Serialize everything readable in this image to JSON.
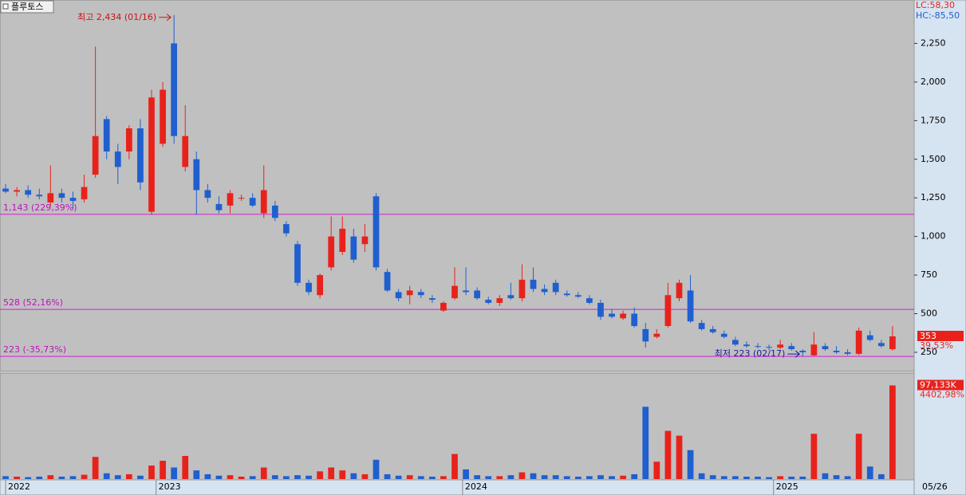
{
  "chart_data": {
    "type": "candlestick",
    "title": "플루토스",
    "open": [
      1310,
      1290,
      1300,
      1270,
      1220,
      1280,
      1250,
      1240,
      1400,
      1760,
      1550,
      1550,
      1700,
      1160,
      1600,
      2250,
      1450,
      1500,
      1300,
      1210,
      1200,
      1250,
      1250,
      1150,
      1200,
      1080,
      950,
      700,
      620,
      800,
      900,
      1000,
      950,
      1260,
      770,
      640,
      620,
      640,
      600,
      520,
      600,
      650,
      650,
      590,
      570,
      620,
      600,
      720,
      660,
      700,
      630,
      620,
      600,
      570,
      500,
      470,
      500,
      400,
      350,
      420,
      600,
      650,
      440,
      400,
      370,
      330,
      300,
      290,
      285,
      280,
      290,
      260,
      230,
      290,
      260,
      250,
      240,
      360,
      310,
      270
    ],
    "high": [
      1340,
      1320,
      1330,
      1310,
      1460,
      1310,
      1290,
      1400,
      2230,
      1780,
      1600,
      1720,
      1760,
      1950,
      2000,
      2434,
      1850,
      1550,
      1340,
      1260,
      1300,
      1270,
      1280,
      1460,
      1230,
      1100,
      970,
      720,
      760,
      1130,
      1130,
      1050,
      1080,
      1280,
      790,
      660,
      680,
      660,
      620,
      580,
      800,
      800,
      670,
      610,
      620,
      700,
      820,
      800,
      690,
      720,
      650,
      640,
      620,
      590,
      530,
      520,
      540,
      440,
      400,
      700,
      720,
      750,
      460,
      420,
      390,
      350,
      320,
      310,
      300,
      330,
      310,
      270,
      380,
      310,
      290,
      270,
      410,
      390,
      330,
      420
    ],
    "low": [
      1280,
      1260,
      1250,
      1240,
      1200,
      1220,
      1180,
      1220,
      1380,
      1500,
      1340,
      1500,
      1300,
      1140,
      1580,
      1600,
      1420,
      1140,
      1220,
      1150,
      1150,
      1230,
      1190,
      1120,
      1100,
      1000,
      680,
      620,
      600,
      780,
      880,
      830,
      900,
      780,
      640,
      580,
      560,
      600,
      570,
      510,
      590,
      620,
      590,
      560,
      550,
      590,
      580,
      640,
      620,
      620,
      610,
      600,
      560,
      460,
      470,
      460,
      410,
      280,
      340,
      410,
      580,
      440,
      390,
      370,
      340,
      290,
      280,
      275,
      265,
      270,
      260,
      223,
      225,
      260,
      240,
      230,
      230,
      320,
      280,
      260
    ],
    "close": [
      1290,
      1300,
      1270,
      1260,
      1280,
      1250,
      1230,
      1320,
      1650,
      1550,
      1450,
      1700,
      1350,
      1900,
      1950,
      1650,
      1650,
      1300,
      1250,
      1170,
      1280,
      1250,
      1200,
      1300,
      1120,
      1020,
      700,
      640,
      750,
      1000,
      1050,
      850,
      1000,
      800,
      650,
      600,
      650,
      620,
      590,
      570,
      680,
      640,
      600,
      570,
      600,
      600,
      720,
      660,
      640,
      640,
      620,
      610,
      570,
      480,
      480,
      500,
      420,
      320,
      370,
      620,
      700,
      450,
      400,
      380,
      350,
      300,
      290,
      285,
      280,
      300,
      270,
      250,
      300,
      270,
      250,
      240,
      390,
      330,
      290,
      353
    ],
    "volume": [
      3000,
      2500,
      2000,
      2500,
      4000,
      2500,
      3000,
      4500,
      23000,
      6000,
      4000,
      5000,
      3500,
      14000,
      19000,
      12000,
      24000,
      9000,
      5000,
      3500,
      4000,
      2500,
      3000,
      12000,
      4000,
      3000,
      4000,
      3500,
      8000,
      12000,
      9000,
      6000,
      5000,
      20000,
      5000,
      3500,
      4000,
      3000,
      2500,
      3000,
      26000,
      10000,
      4000,
      3000,
      3000,
      4000,
      7000,
      6000,
      4000,
      4000,
      3000,
      2500,
      3000,
      4000,
      3000,
      3500,
      5000,
      75000,
      18000,
      50000,
      45000,
      30000,
      6000,
      4000,
      3000,
      3000,
      2500,
      2500,
      2000,
      3000,
      2500,
      2500,
      47000,
      6000,
      4000,
      3000,
      47000,
      13000,
      5000,
      97133
    ],
    "up_color": "#e8221b",
    "down_color": "#1f5fcf",
    "xlim": [
      -0.5,
      80.5
    ],
    "xticks": [
      {
        "value": 0,
        "label": "2022"
      },
      {
        "value": 13.4,
        "label": "2023"
      },
      {
        "value": 40.7,
        "label": "2024"
      },
      {
        "value": 68.4,
        "label": "2025"
      }
    ],
    "last_date": "05/26",
    "ylim": [
      131,
      2531
    ],
    "yticks": [
      250,
      500,
      750,
      {
        "value": 1000,
        "label": "1,000"
      },
      {
        "value": 1250,
        "label": "1,250"
      },
      {
        "value": 1500,
        "label": "1,500"
      },
      {
        "value": 1750,
        "label": "1,750"
      },
      {
        "value": 2000,
        "label": "2,000"
      },
      {
        "value": 2250,
        "label": "2,250"
      }
    ],
    "volume_ylim": [
      0,
      110000
    ],
    "hlines": [
      {
        "value": 1143,
        "label": "1,143 (229,39%)"
      },
      {
        "value": 528,
        "label": "528 (52,16%)"
      },
      {
        "value": 223,
        "label": "223 (-35,73%)"
      }
    ],
    "high_annotation": "최고 2,434 (01/16)",
    "low_annotation": "최저 223 (02/17)",
    "lc": "LC:58,30",
    "hc": "HC:-85,50",
    "change_label": "39,53%",
    "last_volume_label": "97,133K",
    "last_volume_change": "4402,98%"
  }
}
